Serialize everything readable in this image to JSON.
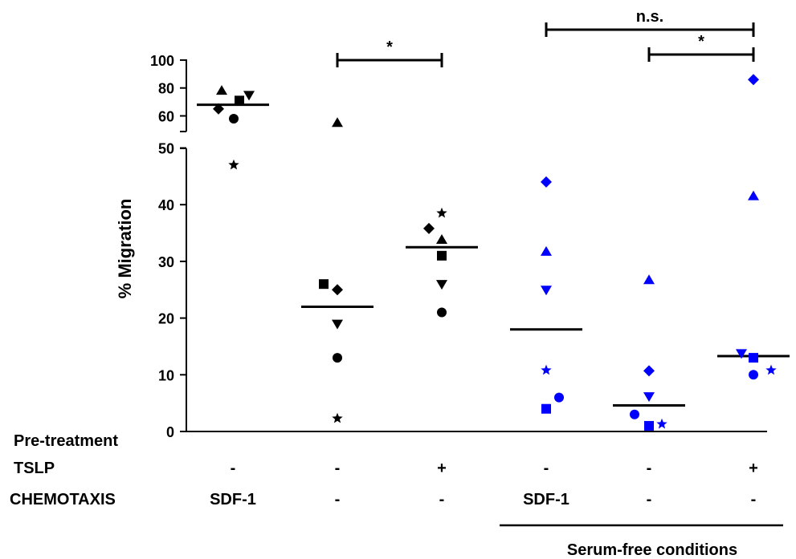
{
  "chart_data": {
    "type": "scatter",
    "ylabel": "% Migration",
    "y_axis_break": true,
    "ylim_lower": [
      0,
      50
    ],
    "ylim_upper": [
      50,
      100
    ],
    "ticks_lower": [
      "0",
      "10",
      "20",
      "30",
      "40",
      "50"
    ],
    "ticks_upper": [
      "60",
      "80",
      "100"
    ],
    "groups": [
      {
        "tslp": "-",
        "chemotaxis": "SDF-1",
        "serum_free": false,
        "color": "#000000",
        "mean": 68,
        "points": [
          {
            "marker": "triangle-up",
            "y": 78
          },
          {
            "marker": "square",
            "y": 71
          },
          {
            "marker": "triangle-down",
            "y": 75
          },
          {
            "marker": "diamond",
            "y": 65
          },
          {
            "marker": "circle",
            "y": 58
          },
          {
            "marker": "star",
            "y": 47
          }
        ]
      },
      {
        "tslp": "-",
        "chemotaxis": "-",
        "serum_free": false,
        "color": "#000000",
        "mean": 22,
        "points": [
          {
            "marker": "triangle-up",
            "y": 55
          },
          {
            "marker": "square",
            "y": 26
          },
          {
            "marker": "diamond",
            "y": 25
          },
          {
            "marker": "triangle-down",
            "y": 19
          },
          {
            "marker": "circle",
            "y": 13
          },
          {
            "marker": "star",
            "y": 2.3
          }
        ]
      },
      {
        "tslp": "+",
        "chemotaxis": "-",
        "serum_free": false,
        "color": "#000000",
        "mean": 32.5,
        "points": [
          {
            "marker": "star",
            "y": 38.5
          },
          {
            "marker": "diamond",
            "y": 35.8
          },
          {
            "marker": "triangle-up",
            "y": 33.8
          },
          {
            "marker": "square",
            "y": 31
          },
          {
            "marker": "triangle-down",
            "y": 26
          },
          {
            "marker": "circle",
            "y": 21
          }
        ]
      },
      {
        "tslp": "-",
        "chemotaxis": "SDF-1",
        "serum_free": true,
        "color": "#0000ff",
        "mean": 18,
        "points": [
          {
            "marker": "diamond",
            "y": 44
          },
          {
            "marker": "triangle-up",
            "y": 31.7
          },
          {
            "marker": "triangle-down",
            "y": 25
          },
          {
            "marker": "star",
            "y": 10.8
          },
          {
            "marker": "circle",
            "y": 6
          },
          {
            "marker": "square",
            "y": 4
          }
        ]
      },
      {
        "tslp": "-",
        "chemotaxis": "-",
        "serum_free": true,
        "color": "#0000ff",
        "mean": 4.6,
        "points": [
          {
            "marker": "triangle-up",
            "y": 26.7
          },
          {
            "marker": "diamond",
            "y": 10.7
          },
          {
            "marker": "triangle-down",
            "y": 6.2
          },
          {
            "marker": "circle",
            "y": 3
          },
          {
            "marker": "star",
            "y": 1.3
          },
          {
            "marker": "square",
            "y": 1
          }
        ]
      },
      {
        "tslp": "+",
        "chemotaxis": "-",
        "serum_free": true,
        "color": "#0000ff",
        "mean": 13.3,
        "points": [
          {
            "marker": "diamond",
            "y": 86
          },
          {
            "marker": "triangle-up",
            "y": 41.5
          },
          {
            "marker": "triangle-down",
            "y": 13.8
          },
          {
            "marker": "square",
            "y": 13
          },
          {
            "marker": "star",
            "y": 10.8
          },
          {
            "marker": "circle",
            "y": 10
          }
        ]
      }
    ],
    "row_labels": {
      "pretreatment": "Pre-treatment",
      "tslp": "TSLP",
      "chemotaxis": "CHEMOTAXIS"
    },
    "serum_free_label": "Serum-free conditions",
    "significance": [
      {
        "from_group": 1,
        "to_group": 2,
        "label": "*"
      },
      {
        "from_group": 3,
        "to_group": 5,
        "label": "n.s."
      },
      {
        "from_group": 4,
        "to_group": 5,
        "label": "*"
      }
    ]
  }
}
